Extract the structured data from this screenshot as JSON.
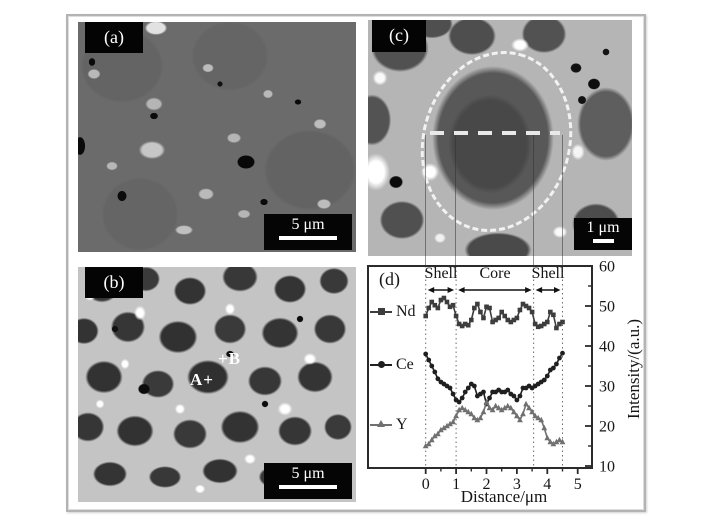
{
  "figure": {
    "panels": {
      "a": {
        "label": "(a)",
        "scalebar": "5 μm"
      },
      "b": {
        "label": "(b)",
        "scalebar": "5 μm",
        "annotations": {
          "a": "A+",
          "b": "+B"
        }
      },
      "c": {
        "label": "(c)",
        "scalebar": "1 μm"
      },
      "d": {
        "label": "(d)"
      }
    }
  },
  "chart_data": {
    "type": "line",
    "title": "",
    "xlabel": "Distance/μm",
    "ylabel": "Intensity/(a.u.)",
    "xlim": [
      -1.9,
      5.5
    ],
    "ylim": [
      10,
      60
    ],
    "x_ticks": [
      0,
      1,
      2,
      3,
      4,
      5
    ],
    "y_ticks": [
      10,
      20,
      30,
      40,
      50,
      60
    ],
    "grid": false,
    "legend_position": "left",
    "guide_lines_x": [
      0,
      1,
      3.55,
      4.5
    ],
    "regions": [
      {
        "text": "Shell",
        "from": 0,
        "to": 1
      },
      {
        "text": "Core",
        "from": 1,
        "to": 3.55
      },
      {
        "text": "Shell",
        "from": 3.55,
        "to": 4.5
      }
    ],
    "x_step": 0.1,
    "series": [
      {
        "name": "Nd",
        "marker": "square",
        "color": "#3d3d3d",
        "x_start": 0,
        "values": [
          47.5,
          49.5,
          51,
          50.2,
          49.5,
          51.5,
          52,
          51,
          49.8,
          50.2,
          47.5,
          45.5,
          45,
          45.5,
          45.2,
          46.5,
          49.5,
          50.5,
          48.5,
          47,
          49.8,
          49.5,
          46,
          46.5,
          47,
          48.5,
          47.5,
          46.5,
          46,
          46.5,
          47,
          49,
          50.5,
          50,
          49.5,
          48.5,
          45.5,
          44.8,
          45,
          45.5,
          46,
          48.5,
          47.8,
          44.5,
          45.5,
          46
        ]
      },
      {
        "name": "Ce",
        "marker": "circle",
        "color": "#1f1f1f",
        "x_start": 0,
        "values": [
          38,
          36.5,
          35,
          33.5,
          31.8,
          31,
          30.5,
          30,
          29.5,
          28,
          26.5,
          26,
          27,
          28.5,
          29.5,
          30.5,
          30,
          27.5,
          28,
          28.5,
          25.5,
          27,
          28.5,
          28.5,
          29,
          28.5,
          28.5,
          29,
          28,
          27.5,
          26.5,
          27.5,
          29.5,
          29.5,
          30,
          29.5,
          30,
          30.5,
          31,
          31.5,
          32.5,
          34,
          34.5,
          35.5,
          37,
          38.2
        ]
      },
      {
        "name": "Y",
        "marker": "triangle",
        "color": "#707070",
        "x_start": 0,
        "values": [
          15,
          15.5,
          16.5,
          17.5,
          18,
          19,
          19.5,
          20,
          20.5,
          21,
          22.5,
          24,
          24.5,
          24,
          23.5,
          23,
          22,
          21.5,
          22,
          23.5,
          26,
          24.5,
          24,
          25,
          24.5,
          24,
          24.5,
          25,
          24.5,
          23.5,
          22.5,
          21.5,
          23,
          25.5,
          24.5,
          23.5,
          22.5,
          22,
          21.5,
          19.5,
          17,
          16,
          15.5,
          16,
          16.5,
          16
        ]
      }
    ]
  }
}
